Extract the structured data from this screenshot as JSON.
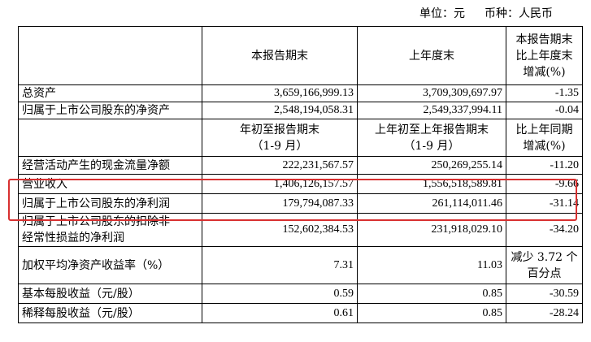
{
  "unit_line": {
    "unit": "单位：元",
    "currency": "币种：人民币"
  },
  "header1": {
    "col1": "本报告期末",
    "col2": "上年度末",
    "col3": [
      "本报告期末",
      "比上年度末",
      "增减(%)"
    ]
  },
  "rows_a": [
    {
      "label": "总资产",
      "v1": "3,659,166,999.13",
      "v2": "3,709,309,697.97",
      "v3": "-1.35"
    },
    {
      "label": "归属于上市公司股东的净资产",
      "v1": "2,548,194,058.31",
      "v2": "2,549,337,994.11",
      "v3": "-0.04"
    }
  ],
  "header2": {
    "col1": [
      "年初至报告期末",
      "（1-9 月）"
    ],
    "col2": [
      "上年初至上年报告期末",
      "（1-9 月）"
    ],
    "col3": [
      "比上年同期",
      "增减(%)"
    ]
  },
  "rows_b": [
    {
      "label": "经营活动产生的现金流量净额",
      "v1": "222,231,567.57",
      "v2": "250,269,255.14",
      "v3": "-11.20"
    },
    {
      "label": "营业收入",
      "v1": "1,406,126,157.57",
      "v2": "1,556,518,589.81",
      "v3": "-9.66"
    },
    {
      "label": "归属于上市公司股东的净利润",
      "v1": "179,794,087.33",
      "v2": "261,114,011.46",
      "v3": "-31.14"
    },
    {
      "label": [
        "归属于上市公司股东的扣除非",
        "经常性损益的净利润"
      ],
      "v1": "152,602,384.53",
      "v2": "231,918,029.10",
      "v3": "-34.20"
    },
    {
      "label": "加权平均净资产收益率（%）",
      "v1": "7.31",
      "v2": "11.03",
      "v3": [
        "减少 3.72 个",
        "百分点"
      ]
    },
    {
      "label": "基本每股收益（元/股）",
      "v1": "0.59",
      "v2": "0.85",
      "v3": "-30.59"
    },
    {
      "label": "稀释每股收益（元/股）",
      "v1": "0.61",
      "v2": "0.85",
      "v3": "-28.24"
    }
  ],
  "highlight_color": "#d83030"
}
